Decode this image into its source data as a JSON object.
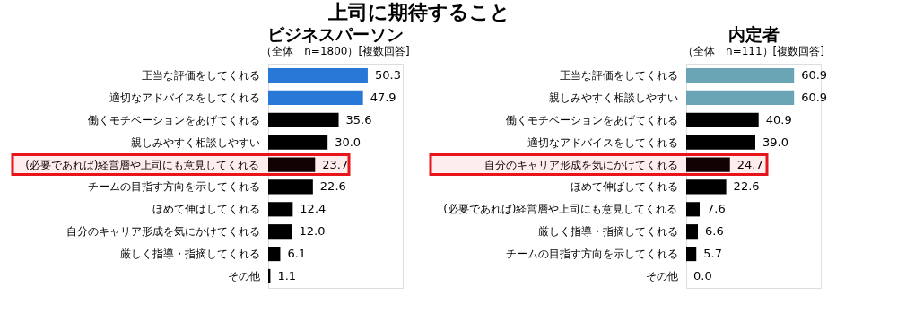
{
  "chart_data": [
    {
      "type": "bar",
      "orientation": "horizontal",
      "title": "ビジネスパーソン",
      "subtitle": "（全体　n=1800）[複数回答]",
      "annotations": [
        "上司に期待すること"
      ],
      "categories": [
        "正当な評価をしてくれる",
        "適切なアドバイスをしてくれる",
        "働くモチベーションをあげてくれる",
        "親しみやすく相談しやすい",
        "(必要であれば)経営層や上司にも意見してくれる",
        "チームの目指す方向を示してくれる",
        "ほめて伸ばしてくれる",
        "自分のキャリア形成を気にかけてくれる",
        "厳しく指導・指摘してくれる",
        "その他"
      ],
      "values": [
        50.3,
        47.9,
        35.6,
        30.0,
        23.7,
        22.6,
        12.4,
        12.0,
        6.1,
        1.1
      ],
      "colors": [
        "#2878d8",
        "#2878d8",
        "#000000",
        "#000000",
        "#000000",
        "#000000",
        "#000000",
        "#000000",
        "#000000",
        "#000000"
      ],
      "value_labels": [
        "50.3",
        "47.9",
        "35.6",
        "30.0",
        "23.7",
        "22.6",
        "12.4",
        "12.0",
        "6.1",
        "1.1"
      ],
      "xlim": [
        0,
        68
      ],
      "tick_labels": "y",
      "bands": [
        {
          "axis": "y",
          "from": "(必要であれば)経営層や上司にも意見してくれる",
          "to": "(必要であれば)経営層や上司にも意見してくれる",
          "color": "#e8141c"
        }
      ]
    },
    {
      "type": "bar",
      "orientation": "horizontal",
      "title": "内定者",
      "subtitle": "（全体　n=111）[複数回答]",
      "categories": [
        "正当な評価をしてくれる",
        "親しみやすく相談しやすい",
        "働くモチベーションをあげてくれる",
        "適切なアドバイスをしてくれる",
        "自分のキャリア形成を気にかけてくれる",
        "ほめて伸ばしてくれる",
        "(必要であれば)経営層や上司にも意見してくれる",
        "厳しく指導・指摘してくれる",
        "チームの目指す方向を示してくれる",
        "その他"
      ],
      "values": [
        60.9,
        60.9,
        40.9,
        39.0,
        24.7,
        22.6,
        7.6,
        6.6,
        5.7,
        0.0
      ],
      "colors": [
        "#6aa5b5",
        "#6aa5b5",
        "#000000",
        "#000000",
        "#000000",
        "#000000",
        "#000000",
        "#000000",
        "#000000",
        "#000000"
      ],
      "value_labels": [
        "60.9",
        "60.9",
        "40.9",
        "39.0",
        "24.7",
        "22.6",
        "7.6",
        "6.6",
        "5.7",
        "0.0"
      ],
      "xlim": [
        0,
        76
      ],
      "tick_labels": "y",
      "bands": [
        {
          "axis": "y",
          "from": "自分のキャリア形成を気にかけてくれる",
          "to": "自分のキャリア形成を気にかけてくれる",
          "color": "#e8141c"
        }
      ]
    }
  ]
}
